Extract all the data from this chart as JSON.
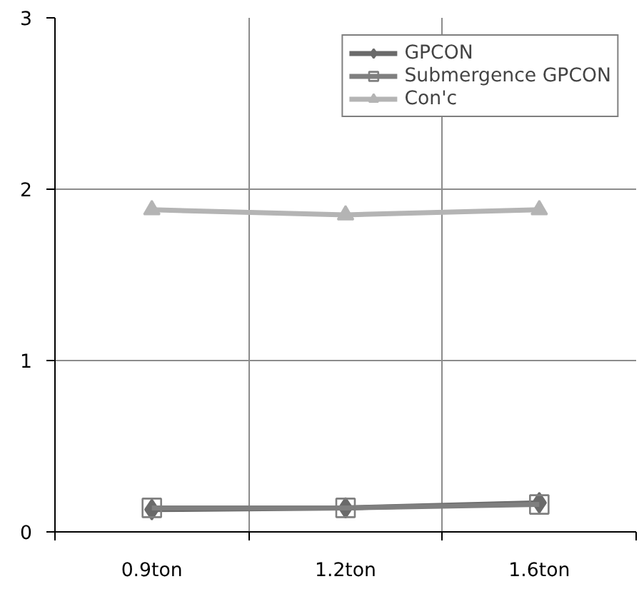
{
  "chart_data": {
    "type": "line",
    "categories": [
      "0.9ton",
      "1.2ton",
      "1.6ton"
    ],
    "series": [
      {
        "name": "GPCON",
        "color": "#6a6a6a",
        "marker": "diamond",
        "values": [
          0.13,
          0.14,
          0.17
        ]
      },
      {
        "name": "Submergence GPCON",
        "color": "#7f7f7f",
        "marker": "square",
        "values": [
          0.14,
          0.14,
          0.16
        ]
      },
      {
        "name": "Con'c",
        "color": "#b4b4b4",
        "marker": "triangle",
        "values": [
          1.88,
          1.85,
          1.88
        ]
      }
    ],
    "ylim": [
      0,
      3
    ],
    "yticks": [
      0,
      1,
      2,
      3
    ],
    "grid": true,
    "legend": "top right"
  }
}
